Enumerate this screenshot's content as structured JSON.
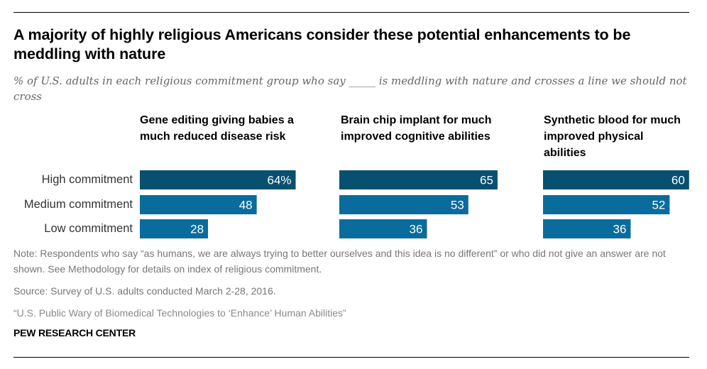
{
  "title": "A majority of highly religious Americans consider these potential enhancements to be meddling with nature",
  "subtitle": "% of U.S. adults in each religious commitment group who say _____ is meddling with nature and crosses a line we should not cross",
  "colors": {
    "high": "#08506f",
    "medium": "#0a6c9d",
    "bar_text": "#ffffff"
  },
  "chart_data": {
    "type": "bar",
    "orientation": "horizontal",
    "title": "A majority of highly religious Americans consider these potential enhancements to be meddling with nature",
    "subtitle": "% of U.S. adults in each religious commitment group who say _____ is meddling with nature and crosses a line we should not cross",
    "categories": [
      "High commitment",
      "Medium commitment",
      "Low commitment"
    ],
    "panels": [
      {
        "name": "Gene editing giving babies a much reduced disease risk",
        "values": [
          64,
          48,
          28
        ],
        "labels": [
          "64%",
          "48",
          "28"
        ]
      },
      {
        "name": "Brain chip implant for much improved cognitive abilities",
        "values": [
          65,
          53,
          36
        ],
        "labels": [
          "65",
          "53",
          "36"
        ]
      },
      {
        "name": "Synthetic blood for much improved physical abilities",
        "values": [
          60,
          52,
          36
        ],
        "labels": [
          "60",
          "52",
          "36"
        ]
      }
    ],
    "xlabel": "",
    "ylabel": "",
    "xlim": [
      0,
      100
    ],
    "grid": false,
    "legend": "none"
  },
  "panel_titles": [
    "Gene editing giving babies a much reduced disease risk",
    "Brain chip implant for much improved cognitive abilities",
    "Synthetic blood for much improved physical abilities"
  ],
  "row_labels": [
    "High commitment",
    "Medium commitment",
    "Low commitment"
  ],
  "footer": {
    "note": "Note: Respondents who say “as humans, we are always trying to better ourselves and this idea is no different” or who did not give an answer are not shown. See Methodology for details on index of religious commitment.",
    "source": "Source: Survey of U.S. adults conducted March 2-28, 2016.",
    "report": "“U.S. Public Wary of Biomedical Technologies to ‘Enhance’ Human Abilities”",
    "brand": "PEW RESEARCH CENTER"
  }
}
